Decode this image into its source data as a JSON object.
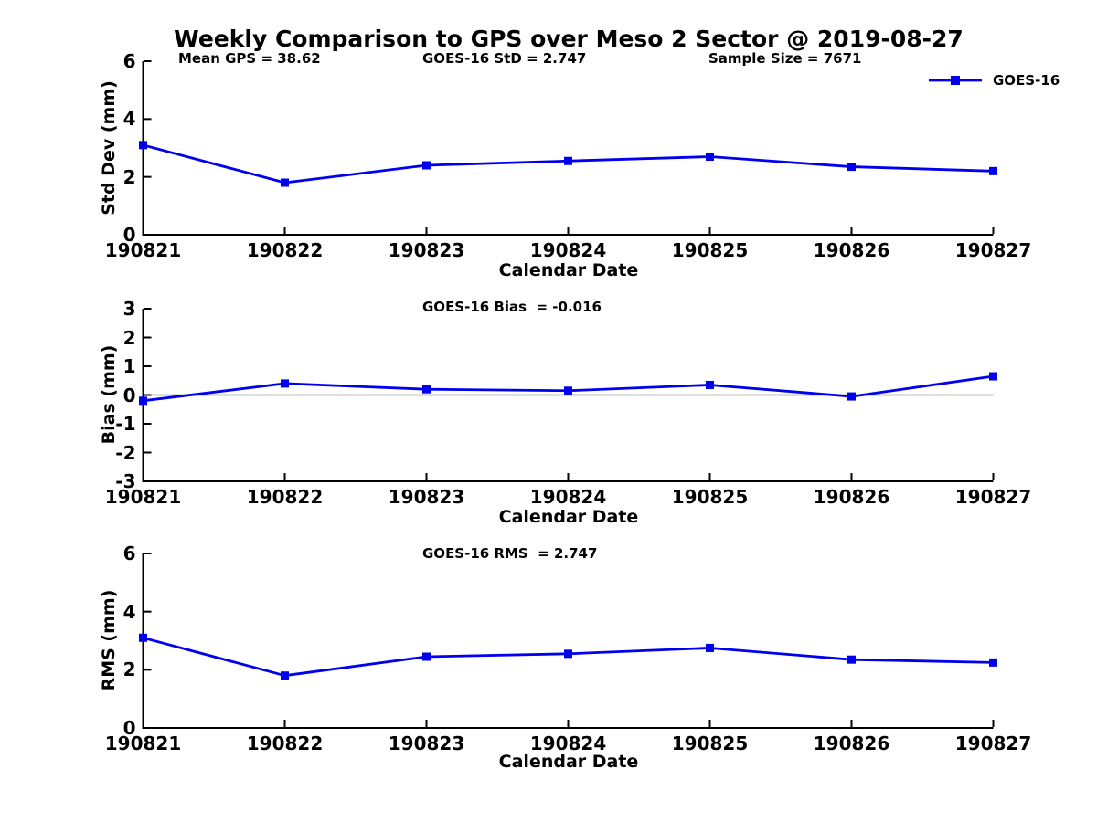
{
  "figure": {
    "background": "#FFFFFF",
    "line_color": "#0000EE",
    "axis_color": "#000000",
    "text_color": "#000000",
    "legend": {
      "label": "GOES-16",
      "marker": "filled-square",
      "position": "top-right"
    }
  },
  "chart_data": [
    {
      "type": "line",
      "title": "Weekly Comparison to GPS over Meso 2 Sector @ 2019-08-27",
      "annotations": [
        "Mean GPS = 38.62",
        "GOES-16 StD = 2.747",
        "Sample Size = 7671"
      ],
      "categories": [
        "190821",
        "190822",
        "190823",
        "190824",
        "190825",
        "190826",
        "190827"
      ],
      "series": [
        {
          "name": "GOES-16",
          "values": [
            3.1,
            1.8,
            2.4,
            2.55,
            2.7,
            2.35,
            2.2
          ]
        }
      ],
      "xlabel": "Calendar Date",
      "ylabel": "Std Dev (mm)",
      "ylim": [
        0,
        6
      ],
      "yticks": [
        0,
        2,
        4,
        6
      ],
      "grid": false,
      "legend_position": "top-right"
    },
    {
      "type": "line",
      "annotations": [
        "GOES-16 Bias  = -0.016"
      ],
      "categories": [
        "190821",
        "190822",
        "190823",
        "190824",
        "190825",
        "190826",
        "190827"
      ],
      "series": [
        {
          "name": "GOES-16",
          "values": [
            -0.2,
            0.4,
            0.2,
            0.15,
            0.35,
            -0.05,
            0.65
          ]
        }
      ],
      "xlabel": "Calendar Date",
      "ylabel": "Bias (mm)",
      "ylim": [
        -3,
        3
      ],
      "yticks": [
        -3,
        -2,
        -1,
        0,
        1,
        2,
        3
      ],
      "zero_line": true,
      "grid": false
    },
    {
      "type": "line",
      "annotations": [
        "GOES-16 RMS  = 2.747"
      ],
      "categories": [
        "190821",
        "190822",
        "190823",
        "190824",
        "190825",
        "190826",
        "190827"
      ],
      "series": [
        {
          "name": "GOES-16",
          "values": [
            3.1,
            1.8,
            2.45,
            2.55,
            2.75,
            2.35,
            2.25
          ]
        }
      ],
      "xlabel": "Calendar Date",
      "ylabel": "RMS (mm)",
      "ylim": [
        0,
        6
      ],
      "yticks": [
        0,
        2,
        4,
        6
      ],
      "grid": false
    }
  ]
}
